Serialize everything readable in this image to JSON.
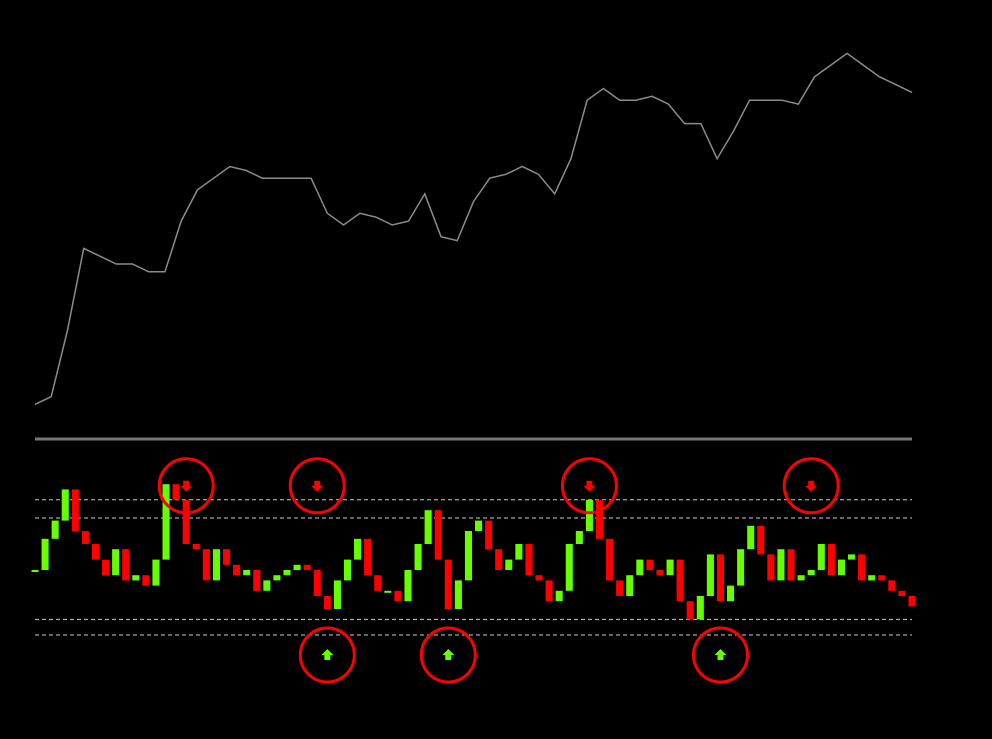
{
  "chart_data": [
    {
      "type": "line",
      "color": "#8c8c8c",
      "ylim": [
        0,
        100
      ],
      "values": [
        4,
        6,
        23,
        44,
        42,
        40,
        40,
        38,
        38,
        51,
        59,
        62,
        65,
        64,
        62,
        62,
        62,
        62,
        53,
        50,
        53,
        52,
        50,
        51,
        58,
        47,
        46,
        56,
        62,
        63,
        65,
        63,
        58,
        67,
        82,
        85,
        82,
        82,
        83,
        81,
        76,
        76,
        67,
        74,
        82,
        82,
        82,
        81,
        88,
        91,
        94,
        91,
        88,
        86,
        84
      ]
    },
    {
      "type": "bar",
      "up_color": "#66ff00",
      "down_color": "#ff0000",
      "ylim": [
        0,
        100
      ],
      "levels": [
        77,
        70,
        31,
        25
      ],
      "values": [
        50,
        62,
        69,
        81,
        65,
        60,
        54,
        48,
        58,
        46,
        48,
        44,
        54,
        83,
        77,
        60,
        58,
        46,
        58,
        52,
        48,
        50,
        42,
        46,
        48,
        50,
        52,
        50,
        40,
        35,
        46,
        54,
        62,
        48,
        42,
        42,
        38,
        50,
        60,
        73,
        54,
        35,
        46,
        65,
        69,
        58,
        50,
        54,
        60,
        48,
        46,
        38,
        42,
        60,
        65,
        77,
        62,
        46,
        40,
        48,
        54,
        50,
        48,
        54,
        38,
        31,
        40,
        56,
        38,
        44,
        58,
        67,
        56,
        46,
        58,
        46,
        48,
        50,
        60,
        48,
        54,
        56,
        46,
        48,
        46,
        42,
        40,
        36
      ],
      "signals_down": [
        15,
        28,
        55,
        77
      ],
      "signals_up": [
        29,
        41,
        68
      ]
    }
  ]
}
